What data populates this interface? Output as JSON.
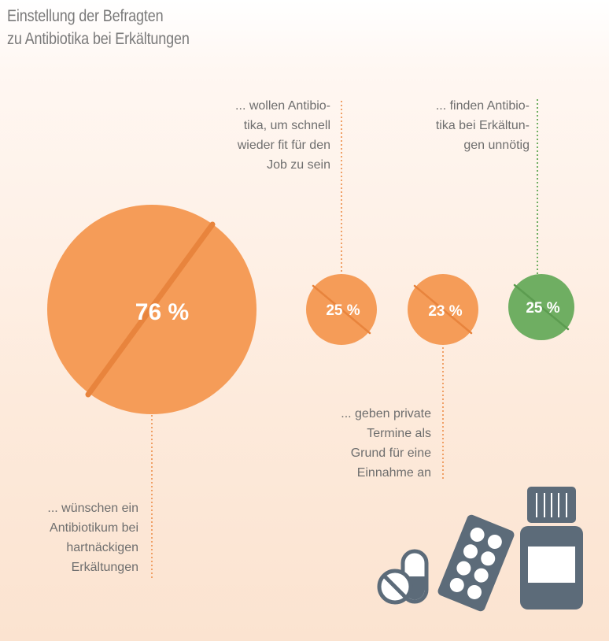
{
  "title": {
    "line1": "Einstellung der Befragten",
    "line2": "zu Antibiotika bei Erkältungen"
  },
  "colors": {
    "orange": "#f59c58",
    "orange_dark": "#e8843d",
    "green": "#6fae62",
    "green_dark": "#5c9c50",
    "icon": "#5c6b79",
    "orange_line": "#f0a066",
    "green_line": "#6fae62"
  },
  "chart_data": {
    "type": "bubble",
    "title": "Einstellung der Befragten zu Antibiotika bei Erkältungen",
    "unit": "%",
    "series": [
      {
        "value": 76,
        "display": "76 %",
        "color": "#f59c58",
        "label_lines": [
          "... wünschen ein",
          "Antibiotikum bei",
          "hartnäckigen",
          "Erkältungen"
        ]
      },
      {
        "value": 25,
        "display": "25 %",
        "color": "#f59c58",
        "label_lines": [
          "... wollen Antibio-",
          "tika, um schnell",
          "wieder fit für den",
          "Job zu sein"
        ]
      },
      {
        "value": 23,
        "display": "23 %",
        "color": "#f59c58",
        "label_lines": [
          "... geben private",
          "Termine als",
          "Grund für eine",
          "Einnahme an"
        ]
      },
      {
        "value": 25,
        "display": "25 %",
        "color": "#6fae62",
        "label_lines": [
          "... finden Antibio-",
          "tika bei Erkältun-",
          "gen unnötig"
        ]
      }
    ]
  },
  "icons": [
    "capsule-icon",
    "blister-pack-icon",
    "medicine-bottle-icon"
  ]
}
